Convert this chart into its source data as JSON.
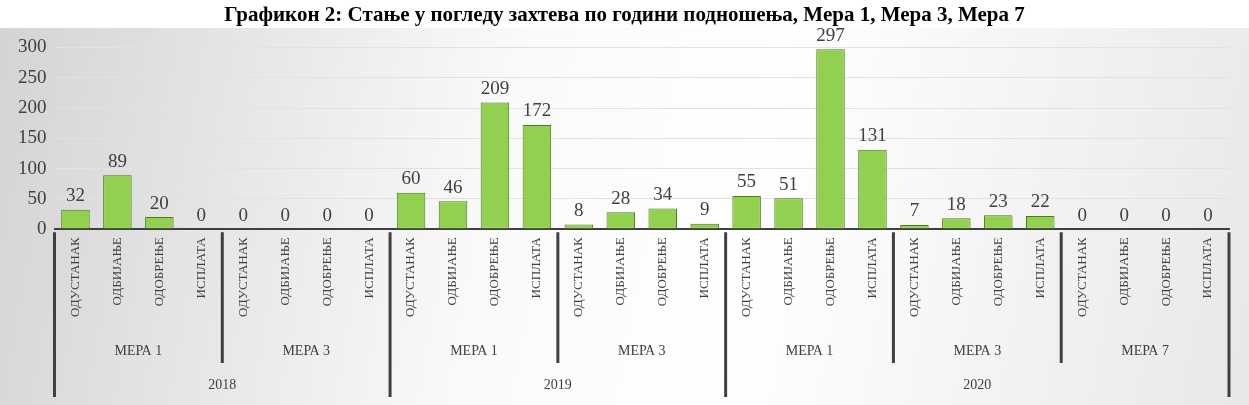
{
  "chart_data": {
    "type": "bar",
    "title": "Графикон 2: Стање у погледу захтева по години подношења, Мера 1, Мера 3, Мера 7",
    "categories": [
      "ОДУСТАНАК",
      "ОДБИЈАЊЕ",
      "ОДОБРЕЊЕ",
      "ИСПЛАТА",
      "ОДУСТАНАК",
      "ОДБИЈАЊЕ",
      "ОДОБРЕЊЕ",
      "ИСПЛАТА",
      "ОДУСТАНАК",
      "ОДБИЈАЊЕ",
      "ОДОБРЕЊЕ",
      "ИСПЛАТА",
      "ОДУСТАНАК",
      "ОДБИЈАЊЕ",
      "ОДОБРЕЊЕ",
      "ИСПЛАТА",
      "ОДУСТАНАК",
      "ОДБИЈАЊЕ",
      "ОДОБРЕЊЕ",
      "ИСПЛАТА",
      "ОДУСТАНАК",
      "ОДБИЈАЊЕ",
      "ОДОБРЕЊЕ",
      "ИСПЛАТА",
      "ОДУСТАНАК",
      "ОДБИЈАЊЕ",
      "ОДОБРЕЊЕ",
      "ИСПЛАТА"
    ],
    "values": [
      32,
      89,
      20,
      0,
      0,
      0,
      0,
      0,
      60,
      46,
      209,
      172,
      8,
      28,
      34,
      9,
      55,
      51,
      297,
      131,
      7,
      18,
      23,
      22,
      0,
      0,
      0,
      0
    ],
    "color": "#92d050",
    "ylim": [
      0,
      300
    ],
    "yticks": [
      0,
      50,
      100,
      150,
      200,
      250,
      300
    ],
    "grid": "y",
    "data_labels": true,
    "annotations": [
      "МЕРА 1",
      "МЕРА 3",
      "МЕРА 1",
      "МЕРА 3",
      "МЕРА 1",
      "МЕРА 3",
      "МЕРА 7",
      "2018",
      "2019",
      "2020"
    ]
  }
}
